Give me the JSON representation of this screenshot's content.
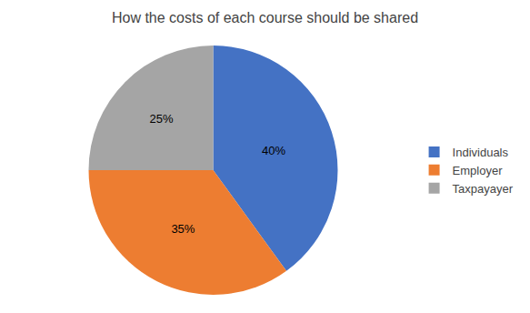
{
  "chart_data": {
    "type": "pie",
    "title": "How the costs of each course should be shared",
    "categories": [
      "Individuals",
      "Employer",
      "Taxpayayer"
    ],
    "values": [
      40,
      35,
      25
    ],
    "value_labels": [
      "40%",
      "35%",
      "25%"
    ],
    "colors": [
      "#4472C4",
      "#ED7D31",
      "#A5A5A5"
    ],
    "data_labels": true,
    "legend": "right"
  }
}
